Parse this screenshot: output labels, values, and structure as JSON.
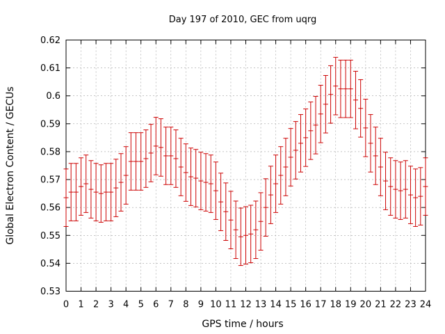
{
  "chart_data": {
    "type": "scatter",
    "title": "Day 197 of 2010, GEC from uqrg",
    "xlabel": "GPS time / hours",
    "ylabel": "Global Electron Content / GECUs",
    "xlim": [
      0,
      24
    ],
    "ylim": [
      0.53,
      0.62
    ],
    "xticks": [
      0,
      1,
      2,
      3,
      4,
      5,
      6,
      7,
      8,
      9,
      10,
      11,
      12,
      13,
      14,
      15,
      16,
      17,
      18,
      19,
      20,
      21,
      22,
      23,
      24
    ],
    "yticks": [
      0.53,
      0.54,
      0.55,
      0.56,
      0.57,
      0.58,
      0.59,
      0.6,
      0.61,
      0.62
    ],
    "yticklabels": [
      "0.53",
      "0.54",
      "0.55",
      "0.56",
      "0.57",
      "0.58",
      "0.59",
      "0.6",
      "0.61",
      "0.62"
    ],
    "grid": true,
    "error_bar_color": "#cc0000",
    "error_halfwidth": 0.0103,
    "x": [
      0,
      0.333,
      0.667,
      1,
      1.333,
      1.667,
      2,
      2.333,
      2.667,
      3,
      3.333,
      3.667,
      4,
      4.333,
      4.667,
      5,
      5.333,
      5.667,
      6,
      6.333,
      6.667,
      7,
      7.333,
      7.667,
      8,
      8.333,
      8.667,
      9,
      9.333,
      9.667,
      10,
      10.333,
      10.667,
      11,
      11.333,
      11.667,
      12,
      12.333,
      12.667,
      13,
      13.333,
      13.667,
      14,
      14.333,
      14.667,
      15,
      15.333,
      15.667,
      16,
      16.333,
      16.667,
      17,
      17.333,
      17.667,
      18,
      18.333,
      18.667,
      19,
      19.333,
      19.667,
      20,
      20.333,
      20.667,
      21,
      21.333,
      21.667,
      22,
      22.333,
      22.667,
      23,
      23.333,
      23.667,
      24
    ],
    "y": [
      0.5635,
      0.5655,
      0.5655,
      0.5675,
      0.5685,
      0.5665,
      0.5655,
      0.565,
      0.5655,
      0.5655,
      0.567,
      0.569,
      0.5715,
      0.5765,
      0.5765,
      0.5765,
      0.5775,
      0.5795,
      0.582,
      0.5815,
      0.5785,
      0.5785,
      0.5775,
      0.5745,
      0.5725,
      0.571,
      0.5705,
      0.5695,
      0.569,
      0.5685,
      0.566,
      0.562,
      0.5585,
      0.5555,
      0.552,
      0.5495,
      0.55,
      0.5505,
      0.552,
      0.555,
      0.56,
      0.5645,
      0.5685,
      0.5715,
      0.5745,
      0.578,
      0.5805,
      0.583,
      0.585,
      0.5875,
      0.5895,
      0.5935,
      0.597,
      0.6005,
      0.6035,
      0.6025,
      0.6025,
      0.6025,
      0.5985,
      0.5955,
      0.5885,
      0.583,
      0.5785,
      0.5745,
      0.5695,
      0.5675,
      0.5665,
      0.566,
      0.5665,
      0.5645,
      0.5635,
      0.564,
      0.5675
    ]
  }
}
